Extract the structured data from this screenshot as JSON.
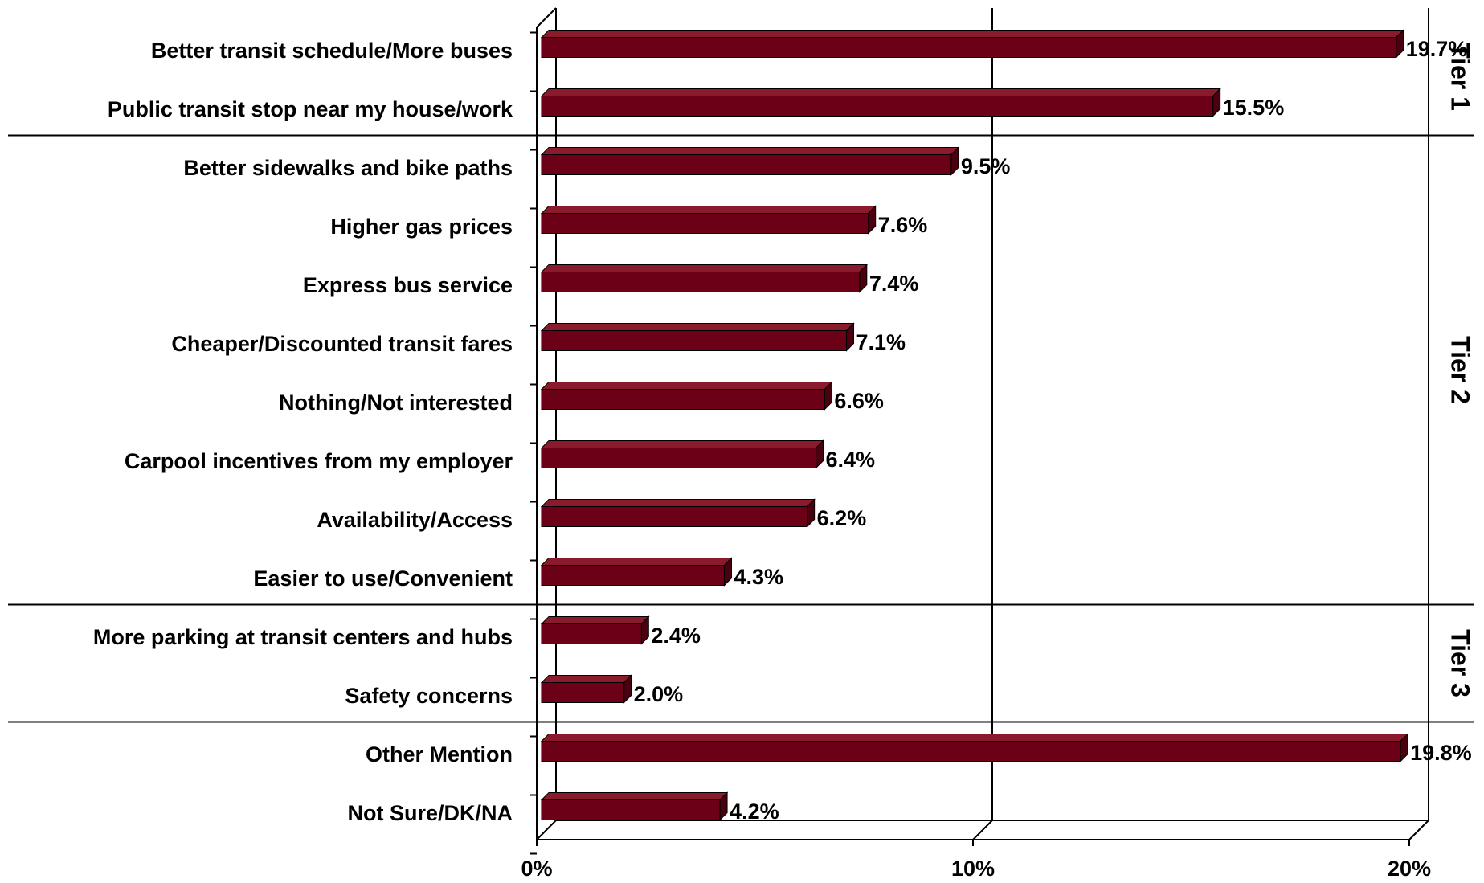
{
  "chart_data": {
    "type": "bar3d_horizontal",
    "categories": [
      "Better transit schedule/More buses",
      "Public transit stop near my house/work",
      "Better sidewalks and bike paths",
      "Higher gas prices",
      "Express bus service",
      "Cheaper/Discounted transit fares",
      "Nothing/Not interested",
      "Carpool incentives from my employer",
      "Availability/Access",
      "Easier to use/Convenient",
      "More parking at transit centers and hubs",
      "Safety concerns",
      "Other Mention",
      "Not Sure/DK/NA"
    ],
    "values": [
      19.7,
      15.5,
      9.5,
      7.6,
      7.4,
      7.1,
      6.6,
      6.4,
      6.2,
      4.3,
      2.4,
      2.0,
      19.8,
      4.2
    ],
    "value_labels": [
      "19.7%",
      "15.5%",
      "9.5%",
      "7.6%",
      "7.4%",
      "7.1%",
      "6.6%",
      "6.4%",
      "6.2%",
      "4.3%",
      "2.4%",
      "2.0%",
      "19.8%",
      "4.2%"
    ],
    "color": "#6b0016",
    "xlim": [
      0,
      20
    ],
    "xticks": [
      {
        "value": 0,
        "label": "0%"
      },
      {
        "value": 10,
        "label": "10%"
      },
      {
        "value": 20,
        "label": "20%"
      }
    ],
    "grid": true,
    "groups": [
      "Tier 1",
      "Tier 2",
      "Tier 3"
    ]
  }
}
